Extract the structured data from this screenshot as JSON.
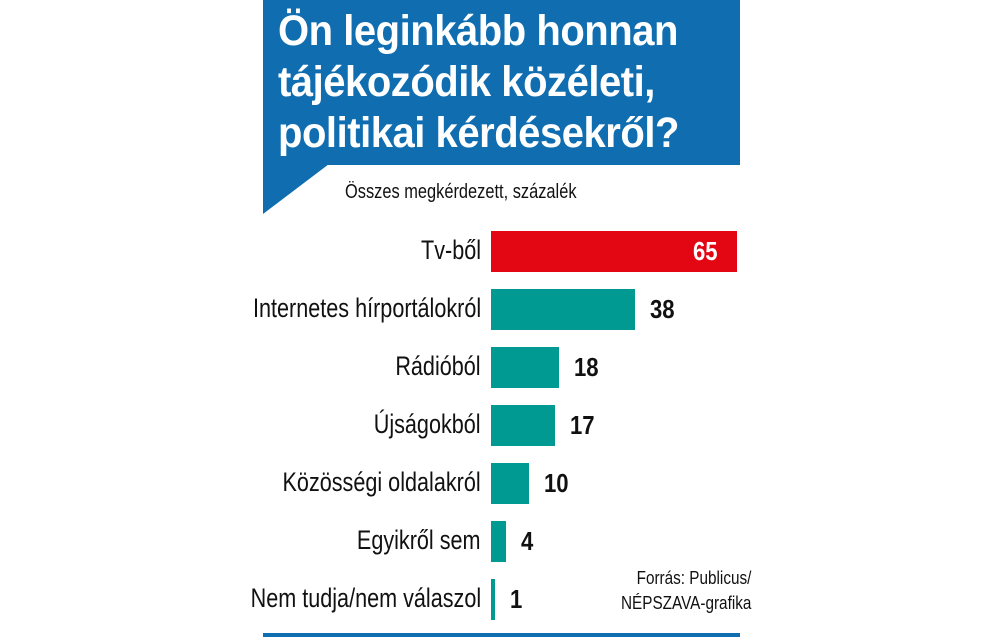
{
  "colors": {
    "header": "#0f6db0",
    "highlight": "#e30613",
    "bar": "#009a93"
  },
  "chart_data": {
    "type": "bar",
    "orientation": "horizontal",
    "title": "Ön leginkább honnan\ntájékozódik közéleti,\npolitikai kérdésekről?",
    "subtitle": "Összes megkérdezett, százalék",
    "categories": [
      "Tv-ből",
      "Internetes hírportálokról",
      "Rádióból",
      "Újságokból",
      "Közösségi oldalakról",
      "Egyikről sem",
      "Nem tudja/nem válaszol"
    ],
    "values": [
      65,
      38,
      18,
      17,
      10,
      4,
      1
    ],
    "value_labels": [
      "65",
      "38",
      "18",
      "17",
      "10",
      "4",
      "1"
    ],
    "highlight_index": 0,
    "unit": "%",
    "source": "Forrás: Publicus/\nNÉPSZAVA-grafika"
  }
}
